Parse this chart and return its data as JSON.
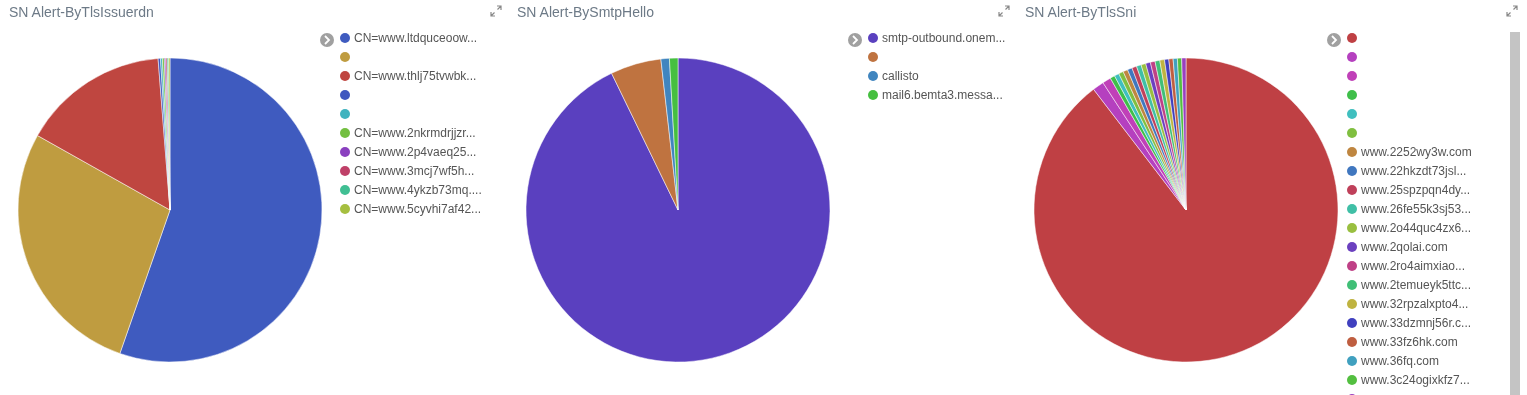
{
  "chart_data": [
    {
      "type": "pie",
      "title": "SN Alert-ByTlsIssuerdn",
      "legend": "right",
      "categories": [
        "CN=www.ltdquceoow...",
        null,
        "CN=www.thlj75tvwbk...",
        null,
        null,
        "CN=www.2nkrmdrjjzr...",
        "CN=www.2p4vaeq25...",
        "CN=www.3mcj7wf5h...",
        "CN=www.4ykzb73mq....",
        "CN=www.5cyvhi7af42..."
      ],
      "values": [
        55.35,
        27.8,
        15.6,
        0.25,
        0.2,
        0.2,
        0.15,
        0.15,
        0.15,
        0.15
      ],
      "colors": [
        "#3f5bbf",
        "#bf9c40",
        "#bf4640",
        "#4057bf",
        "#40b3bf",
        "#73bf40",
        "#8a40bf",
        "#bf4068",
        "#40bf93",
        "#a6bf40"
      ]
    },
    {
      "type": "pie",
      "title": "SN Alert-BySmtpHello",
      "legend": "right",
      "categories": [
        "smtp-outbound.onem...",
        null,
        "callisto",
        "mail6.bemta3.messa..."
      ],
      "values": [
        92.8,
        5.4,
        0.9,
        0.9
      ],
      "colors": [
        "#5a40bf",
        "#bf7340",
        "#4085bf",
        "#46bf40"
      ]
    },
    {
      "type": "pie",
      "title": "SN Alert-ByTlsSni",
      "legend": "right",
      "categories": [
        null,
        null,
        null,
        null,
        null,
        null,
        "www.2252wy3w.com",
        "www.22hkzdt73jsl...",
        "www.25spzpqn4dy...",
        "www.26fe55k3sj53...",
        "www.2o44quc4zx6...",
        "www.2qolai.com",
        "www.2ro4aimxiao...",
        "www.2temueyk5ttc...",
        "www.32rpzalxpto4...",
        "www.33dzmnj56r.c...",
        "www.33fz6hk.com",
        "www.36fq.com",
        "www.3c24ogixkfz7...",
        null
      ],
      "values": [
        89.15,
        1.2,
        0.9,
        0.5,
        0.5,
        0.5,
        0.5,
        0.5,
        0.5,
        0.5,
        0.5,
        0.5,
        0.5,
        0.5,
        0.5,
        0.45,
        0.45,
        0.45,
        0.45,
        0.45
      ],
      "colors": [
        "#bf4044",
        "#b540bf",
        "#c040b8",
        "#3fbf4a",
        "#40bfbf",
        "#80bf40",
        "#bf8640",
        "#4077bf",
        "#bf405a",
        "#40bfa6",
        "#99bf40",
        "#6b40bf",
        "#bf4086",
        "#40bf77",
        "#bfb340",
        "#4040bf",
        "#bf5e40",
        "#40a0bf",
        "#53bf40",
        "#9940bf"
      ]
    }
  ]
}
